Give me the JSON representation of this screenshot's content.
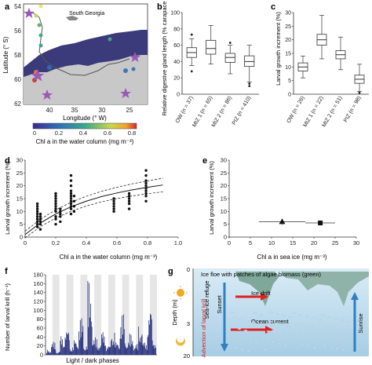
{
  "panels": {
    "a": {
      "letter": "a",
      "place": "South Georgia",
      "xlabel": "Longitude (° W)",
      "ylabel": "Latitude (° S)",
      "xticks": [
        "40",
        "35",
        "30",
        "25"
      ],
      "yticks": [
        "54",
        "56",
        "58",
        "60",
        "62"
      ],
      "colorbar_label": "Chl a in the water column (mg m⁻³)",
      "colorbar_ticks": [
        "0",
        "0.2",
        "0.4",
        "0.6",
        "0.8"
      ],
      "colors": {
        "sea": "#ffffff",
        "ice": "#3a3a7a",
        "land": "#c8c8c8",
        "track": "#555555"
      }
    },
    "b": {
      "letter": "b",
      "ylabel": "Relative digestive gland length (% carapace length)",
      "yticks": [
        "0",
        "20",
        "40",
        "60",
        "80",
        "100"
      ],
      "categories": [
        "OW (n = 37)",
        "MIZ 1 (n = 65)",
        "MIZ 2 (n = 86)",
        "PIZ (n = 410)"
      ]
    },
    "c": {
      "letter": "c",
      "ylabel": "Larval growth increment (%)",
      "yticks": [
        "0",
        "5",
        "10",
        "15",
        "20",
        "25",
        "30"
      ],
      "categories": [
        "OW (n = 26)",
        "MIZ 1 (n = 22)",
        "MIZ 2 (n = 51)",
        "PIZ (n = 98)"
      ]
    },
    "d": {
      "letter": "d",
      "ylabel": "Larval growth increment (%)",
      "xlabel": "Chl a in the water column (mg m⁻³)",
      "xticks": [
        "0",
        "0.2",
        "0.4",
        "0.6",
        "0.8",
        "1.0"
      ],
      "yticks": [
        "0",
        "5",
        "10",
        "15",
        "20",
        "25",
        "30"
      ]
    },
    "e": {
      "letter": "e",
      "ylabel": "Larval growth increment (%)",
      "xlabel": "Chl a in sea ice (mg m⁻³)",
      "xticks": [
        "0",
        "5",
        "10",
        "15",
        "20",
        "25",
        "30"
      ],
      "yticks": [
        "0",
        "5",
        "10",
        "15",
        "20",
        "25",
        "30"
      ]
    },
    "f": {
      "letter": "f",
      "ylabel": "Number of larval krill (h⁻¹)",
      "xlabel": "Light / dark phases",
      "yticks": [
        "0",
        "20",
        "40",
        "60",
        "80",
        "100",
        "120",
        "140",
        "160",
        "180"
      ],
      "colors": {
        "bars": "#1f2a7a",
        "dark": "#e6e6e6"
      }
    },
    "g": {
      "letter": "g",
      "ylabel": "Depth (m)",
      "depth_ticks": [
        "0",
        "3",
        "20"
      ],
      "labels": {
        "floe": "Ice floe with patches of algae biomass (green)",
        "refuge": "Sea-ice refuge",
        "sunset": "Sunset",
        "drift": "Ice drift",
        "current": "Ocean current",
        "advection": "Advection of larval krill",
        "sunrise": "Sunrise"
      },
      "colors": {
        "water_top": "#cfe6f2",
        "water_bottom": "#a9cfe6",
        "ice": "#7fa89a",
        "arrow": "#e02020",
        "blue_arrow": "#2f7fc1"
      }
    }
  },
  "chart_data": [
    {
      "panel": "b",
      "type": "box",
      "categories": [
        "OW (n = 37)",
        "MIZ 1 (n = 65)",
        "MIZ 2 (n = 86)",
        "PIZ (n = 410)"
      ],
      "ylim": [
        0,
        100
      ],
      "boxes": [
        {
          "whisker_low": 35,
          "q1": 45,
          "median": 51,
          "q3": 57,
          "whisker_high": 68,
          "outliers": [
            73,
            28
          ]
        },
        {
          "whisker_low": 37,
          "q1": 49,
          "median": 56,
          "q3": 66,
          "whisker_high": 84,
          "outliers": []
        },
        {
          "whisker_low": 25,
          "q1": 39,
          "median": 45,
          "q3": 50,
          "whisker_high": 60,
          "outliers": [
            63
          ]
        },
        {
          "whisker_low": 15,
          "q1": 34,
          "median": 40,
          "q3": 47,
          "whisker_high": 60,
          "outliers": [
            10,
            13
          ]
        }
      ]
    },
    {
      "panel": "c",
      "type": "box",
      "categories": [
        "OW (n = 26)",
        "MIZ 1 (n = 22)",
        "MIZ 2 (n = 51)",
        "PIZ (n = 98)"
      ],
      "ylim": [
        0,
        30
      ],
      "boxes": [
        {
          "whisker_low": 6,
          "q1": 8.5,
          "median": 10,
          "q3": 11.5,
          "whisker_high": 14,
          "outliers": []
        },
        {
          "whisker_low": 13,
          "q1": 18,
          "median": 20,
          "q3": 22,
          "whisker_high": 29,
          "outliers": []
        },
        {
          "whisker_low": 9,
          "q1": 13,
          "median": 14.5,
          "q3": 16,
          "whisker_high": 21,
          "outliers": []
        },
        {
          "whisker_low": 1,
          "q1": 4,
          "median": 5.5,
          "q3": 7,
          "whisker_high": 11,
          "outliers": [
            0.5
          ]
        }
      ]
    },
    {
      "panel": "d",
      "type": "scatter",
      "xlim": [
        0,
        1.0
      ],
      "ylim": [
        0,
        30
      ],
      "groups": [
        {
          "x": 0.08,
          "y": [
            4,
            5,
            6,
            7,
            8,
            9,
            10,
            11,
            12,
            13
          ]
        },
        {
          "x": 0.1,
          "y": [
            3,
            5,
            6,
            7,
            8,
            9
          ]
        },
        {
          "x": 0.2,
          "y": [
            5,
            7,
            8,
            10,
            11,
            12,
            13,
            14,
            15,
            16,
            17
          ]
        },
        {
          "x": 0.23,
          "y": [
            6,
            8,
            9,
            10,
            11
          ]
        },
        {
          "x": 0.3,
          "y": [
            9,
            11,
            12,
            13,
            14,
            15,
            16,
            17,
            18,
            20,
            22,
            24
          ]
        },
        {
          "x": 0.32,
          "y": [
            10,
            12,
            14,
            16
          ]
        },
        {
          "x": 0.58,
          "y": [
            10,
            11,
            12,
            13,
            14,
            15
          ]
        },
        {
          "x": 0.68,
          "y": [
            11,
            13,
            14,
            15,
            16,
            17
          ]
        },
        {
          "x": 0.79,
          "y": [
            14,
            16,
            17,
            18,
            19,
            20,
            21,
            22,
            24,
            26
          ]
        }
      ],
      "fit": {
        "x": [
          0,
          0.1,
          0.2,
          0.3,
          0.4,
          0.5,
          0.6,
          0.7,
          0.8,
          0.9
        ],
        "y": [
          1,
          5.5,
          9,
          11.8,
          14,
          15.8,
          17.2,
          18.4,
          19.4,
          20.3
        ]
      }
    },
    {
      "panel": "e",
      "type": "scatter",
      "xlim": [
        0,
        30
      ],
      "ylim": [
        0,
        30
      ],
      "points": [
        {
          "x": 12.5,
          "y": 6,
          "xerr": [
            7,
            18
          ],
          "yerr": [
            4.8,
            7.2
          ],
          "marker": "triangle"
        },
        {
          "x": 21.5,
          "y": 5.5,
          "xerr": [
            18,
            25
          ],
          "yerr": [
            4.5,
            6.5
          ],
          "marker": "square"
        }
      ]
    },
    {
      "panel": "f",
      "type": "bar",
      "ylim": [
        0,
        180
      ],
      "dark_phases": 8,
      "peaks": [
        12,
        30,
        8,
        45,
        60,
        20,
        35,
        85,
        25,
        170,
        40,
        28,
        55,
        22,
        60,
        30,
        95,
        35,
        48,
        25,
        75,
        30,
        110,
        40
      ]
    }
  ]
}
